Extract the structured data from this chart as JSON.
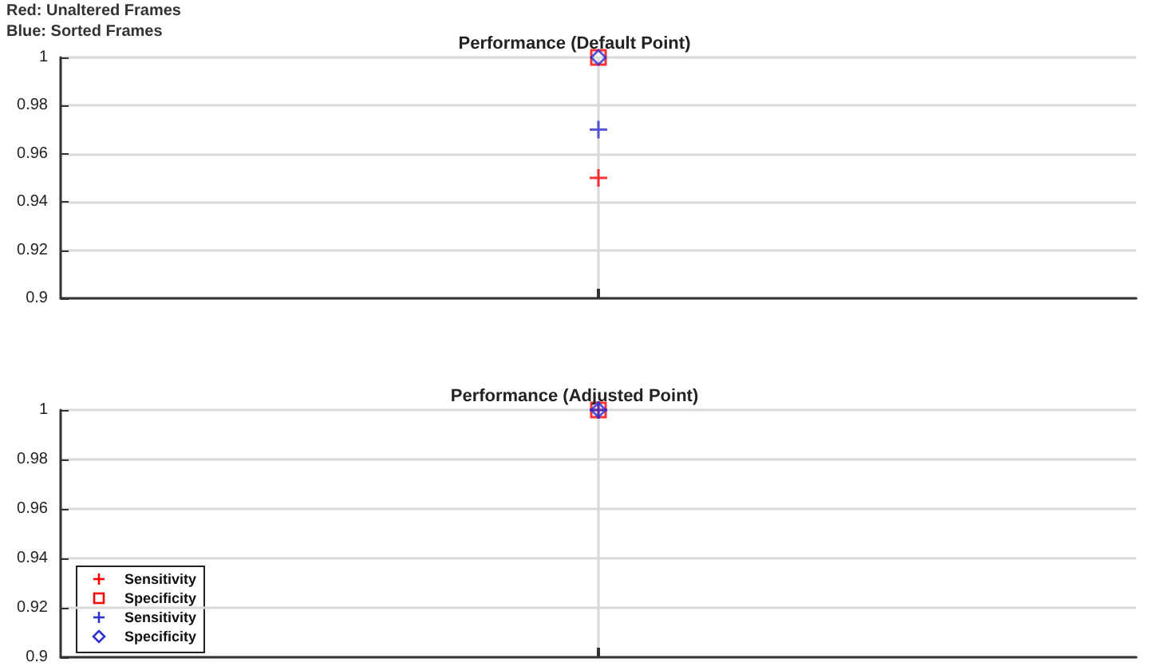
{
  "chart_data": [
    {
      "type": "scatter",
      "title": "Performance (Default Point)",
      "categories": [
        null
      ],
      "ylim": [
        0.9,
        1
      ],
      "yticks": [
        0.9,
        0.92,
        0.94,
        0.96,
        0.98,
        1
      ],
      "grid": true,
      "legend": false,
      "annotations": [
        "Red: Unaltered Frames",
        "Blue: Sorted Frames"
      ],
      "series": [
        {
          "color": "#ff0000",
          "marker": "cross",
          "values": [
            0.95
          ]
        },
        {
          "color": "#ff0000",
          "marker": "square",
          "values": [
            1
          ]
        },
        {
          "color": "#3030d0",
          "marker": "cross",
          "values": [
            0.97
          ]
        },
        {
          "color": "#3030d0",
          "marker": "diamond",
          "values": [
            1
          ]
        }
      ]
    },
    {
      "type": "scatter",
      "title": "Performance (Adjusted Point)",
      "categories": [
        null
      ],
      "ylim": [
        0.9,
        1
      ],
      "yticks": [
        0.9,
        0.92,
        0.94,
        0.96,
        0.98,
        1
      ],
      "grid": true,
      "legend": "bottom left",
      "series": [
        {
          "name": "Sensitivity",
          "color": "#ff0000",
          "marker": "cross",
          "values": [
            1
          ]
        },
        {
          "name": "Specificity",
          "color": "#ff0000",
          "marker": "square",
          "values": [
            1
          ]
        },
        {
          "name": "Sensitivity",
          "color": "#3030d0",
          "marker": "cross",
          "values": [
            1
          ]
        },
        {
          "name": "Specificity",
          "color": "#3030d0",
          "marker": "diamond",
          "values": [
            1
          ]
        }
      ]
    }
  ]
}
